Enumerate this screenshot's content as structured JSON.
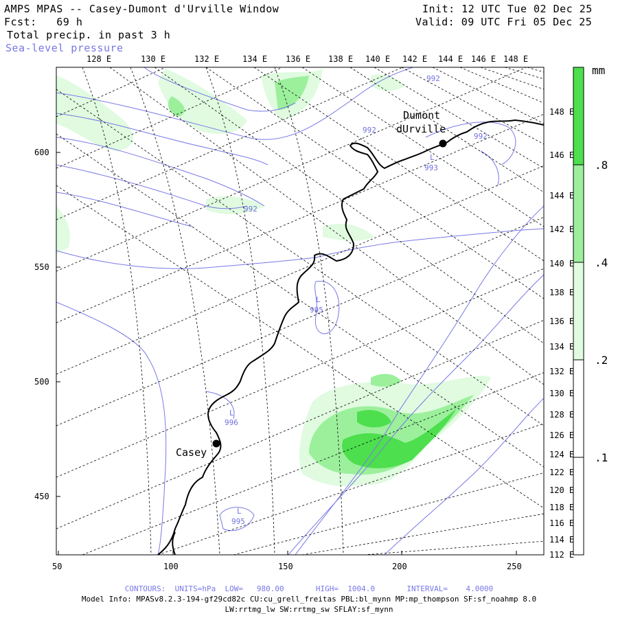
{
  "header": {
    "title": "AMPS MPAS -- Casey-Dumont d'Urville Window",
    "forecast": "Fcst:   69 h",
    "field": "Total precip. in past 3 h",
    "overlay": "Sea-level pressure",
    "init": "Init: 12 UTC Tue 02 Dec 25",
    "valid": "Valid: 09 UTC Fri 05 Dec 25"
  },
  "axes": {
    "top_lon_labels": [
      "128 E",
      "130 E",
      "132 E",
      "134 E",
      "136 E",
      "138 E",
      "140 E",
      "142 E",
      "144 E",
      "146 E",
      "148 E"
    ],
    "right_lon_labels": [
      "148 E",
      "146 E",
      "144 E",
      "142 E",
      "140 E",
      "138 E",
      "136 E",
      "134 E",
      "132 E",
      "130 E",
      "128 E",
      "126 E",
      "124 E",
      "122 E",
      "120 E",
      "118 E",
      "116 E",
      "114 E",
      "112 E"
    ],
    "left_labels": [
      "600",
      "550",
      "500",
      "450"
    ],
    "bottom_labels": [
      "50",
      "100",
      "150",
      "200",
      "250"
    ]
  },
  "places": [
    {
      "name_line1": "Dumont",
      "name_line2": "dUrville"
    },
    {
      "name_line1": "Casey",
      "name_line2": ""
    }
  ],
  "isobar_labels": [
    "992",
    "992",
    "992",
    "992",
    "995",
    "995",
    "L",
    "993",
    "L",
    "996",
    "L",
    "L"
  ],
  "legend": {
    "unit": "mm",
    "labels": [
      ".8",
      ".4",
      ".2",
      ".1"
    ],
    "colors": [
      "#4ddf4d",
      "#9cf09c",
      "#e0fbe0",
      "#ffffff"
    ]
  },
  "footer": {
    "contours": "CONTOURS:  UNITS=hPa  LOW=   980.00       HIGH=  1004.0       INTERVAL=    4.0000",
    "model_info": "Model Info: MPASv8.2.3-194-gf29cd82c CU:cu_grell_freitas PBL:bl_mynn MP:mp_thompson SF:sf_noahmp 8.0",
    "model_info2": "LW:rrtmg_lw SW:rrtmg_sw SFLAY:sf_mynn"
  },
  "colors": {
    "isobar": "#7878e6",
    "coast": "#000000",
    "grid": "#000000"
  }
}
